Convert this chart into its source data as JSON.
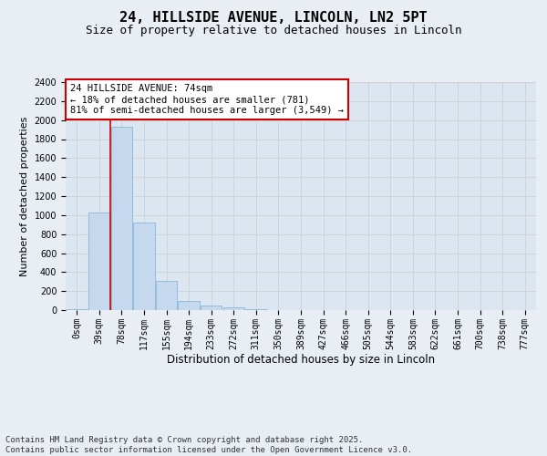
{
  "title_line1": "24, HILLSIDE AVENUE, LINCOLN, LN2 5PT",
  "title_line2": "Size of property relative to detached houses in Lincoln",
  "xlabel": "Distribution of detached houses by size in Lincoln",
  "ylabel": "Number of detached properties",
  "bar_labels": [
    "0sqm",
    "39sqm",
    "78sqm",
    "117sqm",
    "155sqm",
    "194sqm",
    "233sqm",
    "272sqm",
    "311sqm",
    "350sqm",
    "389sqm",
    "427sqm",
    "466sqm",
    "505sqm",
    "544sqm",
    "583sqm",
    "622sqm",
    "661sqm",
    "700sqm",
    "738sqm",
    "777sqm"
  ],
  "bar_values": [
    10,
    1030,
    1930,
    920,
    310,
    100,
    48,
    25,
    12,
    3,
    0,
    0,
    0,
    0,
    0,
    0,
    0,
    0,
    0,
    0,
    0
  ],
  "bar_color": "#c5d8ee",
  "bar_edge_color": "#7aafd4",
  "annotation_text": "24 HILLSIDE AVENUE: 74sqm\n← 18% of detached houses are smaller (781)\n81% of semi-detached houses are larger (3,549) →",
  "annotation_box_color": "#cc0000",
  "vline_x": 1.5,
  "vline_color": "#cc0000",
  "ylim": [
    0,
    2400
  ],
  "yticks": [
    0,
    200,
    400,
    600,
    800,
    1000,
    1200,
    1400,
    1600,
    1800,
    2000,
    2200,
    2400
  ],
  "grid_color": "#cccccc",
  "bg_color": "#e8eef4",
  "plot_bg_color": "#dce6f0",
  "footnote": "Contains HM Land Registry data © Crown copyright and database right 2025.\nContains public sector information licensed under the Open Government Licence v3.0.",
  "footnote_fontsize": 6.5,
  "title1_fontsize": 11,
  "title2_fontsize": 9,
  "xlabel_fontsize": 8.5,
  "ylabel_fontsize": 8,
  "tick_fontsize": 7,
  "annotation_fontsize": 7.5
}
